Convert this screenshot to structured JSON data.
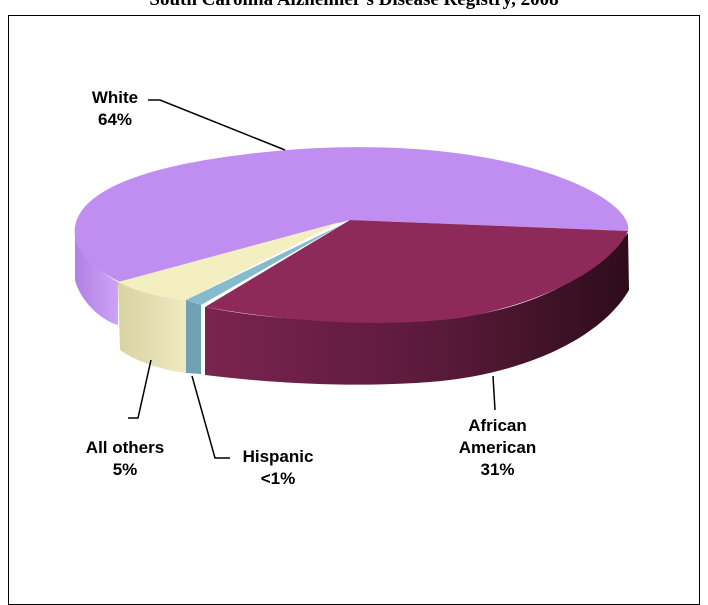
{
  "chart_data": {
    "type": "pie",
    "title": "South Carolina Alzheimer's Disease Registry, 2008",
    "slices": [
      {
        "label": "White",
        "value_label": "64%",
        "value": 64,
        "color": "#bf8ef0"
      },
      {
        "label": "African American",
        "value_label": "31%",
        "value": 31,
        "color": "#8d2a5a"
      },
      {
        "label": "Hispanic",
        "value_label": "<1%",
        "value": 1,
        "color": "#7fb7c9"
      },
      {
        "label": "All others",
        "value_label": "5%",
        "value": 5,
        "color": "#f3efc0"
      }
    ],
    "legend": "none",
    "style": "3d-exploded-pie"
  }
}
